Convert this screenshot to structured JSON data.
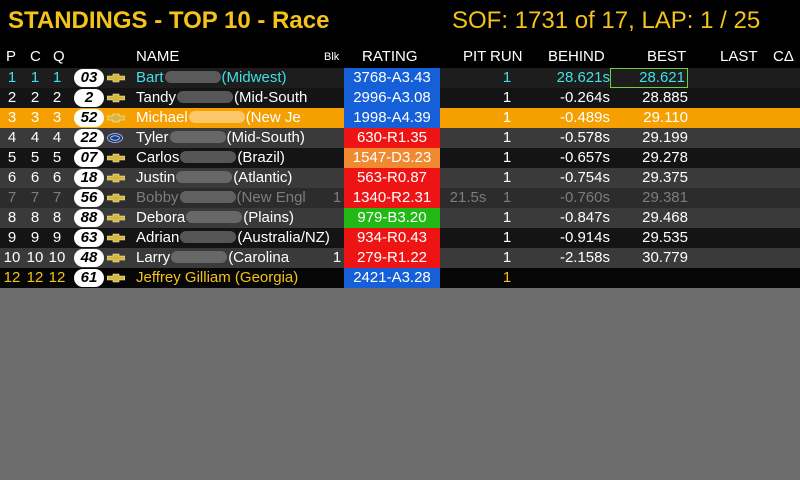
{
  "header": {
    "title": "STANDINGS - TOP 10 - Race",
    "session": "SOF: 1731 of 17, LAP: 1 / 25"
  },
  "columns": {
    "p": "P",
    "c": "C",
    "q": "Q",
    "name": "NAME",
    "blk": "Blk",
    "rating": "RATING",
    "pit": "PIT",
    "run": "RUN",
    "behind": "BEHIND",
    "best": "BEST",
    "last": "LAST",
    "delta": "CΔ"
  },
  "colors": {
    "accent": "#f3c21b",
    "self_text": "#3fe0e6",
    "highlight_row": "#f5a000",
    "rating_blue": "#1560d8",
    "rating_red": "#ee1414",
    "rating_orange": "#f08a30",
    "rating_green": "#22b815"
  },
  "rows": [
    {
      "p": "1",
      "c": "1",
      "q": "1",
      "num": "03",
      "make": "chevy-icon",
      "first": "Bart",
      "region": "(Midwest)",
      "rating": "3768-A3.43",
      "lic": "A",
      "pit": "",
      "run": "1",
      "behind": "28.621s",
      "best": "28.621",
      "style": "self"
    },
    {
      "p": "2",
      "c": "2",
      "q": "2",
      "num": "2",
      "make": "chevy-icon",
      "first": "Tandy",
      "region": "(Mid-South",
      "rating": "2996-A3.08",
      "lic": "A",
      "pit": "",
      "run": "1",
      "behind": "-0.264s",
      "best": "28.885",
      "style": "dark"
    },
    {
      "p": "3",
      "c": "3",
      "q": "3",
      "num": "52",
      "make": "chevy-icon",
      "first": "Michael",
      "region": "(New Je",
      "rating": "1998-A4.39",
      "lic": "A",
      "pit": "",
      "run": "1",
      "behind": "-0.489s",
      "best": "29.110",
      "style": "highlight"
    },
    {
      "p": "4",
      "c": "4",
      "q": "4",
      "num": "22",
      "make": "ford-icon",
      "first": "Tyler",
      "region": "(Mid-South)",
      "rating": "630-R1.35",
      "lic": "R",
      "pit": "",
      "run": "1",
      "behind": "-0.578s",
      "best": "29.199",
      "style": "light"
    },
    {
      "p": "5",
      "c": "5",
      "q": "5",
      "num": "07",
      "make": "chevy-icon",
      "first": "Carlos",
      "region": "(Brazil)",
      "rating": "1547-D3.23",
      "lic": "D",
      "pit": "",
      "run": "1",
      "behind": "-0.657s",
      "best": "29.278",
      "style": "dark"
    },
    {
      "p": "6",
      "c": "6",
      "q": "6",
      "num": "18",
      "make": "chevy-icon",
      "first": "Justin",
      "region": "(Atlantic)",
      "rating": "563-R0.87",
      "lic": "R",
      "pit": "",
      "run": "1",
      "behind": "-0.754s",
      "best": "29.375",
      "style": "light"
    },
    {
      "p": "7",
      "c": "7",
      "q": "7",
      "num": "56",
      "make": "chevy-icon",
      "first": "Bobby",
      "region": "(New Engl",
      "blk": "1",
      "rating": "1340-R2.31",
      "lic": "R",
      "pit": "21.5s",
      "run": "1",
      "behind": "-0.760s",
      "best": "29.381",
      "style": "pitted"
    },
    {
      "p": "8",
      "c": "8",
      "q": "8",
      "num": "88",
      "make": "chevy-icon",
      "first": "Debora",
      "region": "(Plains)",
      "rating": "979-B3.20",
      "lic": "B",
      "pit": "",
      "run": "1",
      "behind": "-0.847s",
      "best": "29.468",
      "style": "light"
    },
    {
      "p": "9",
      "c": "9",
      "q": "9",
      "num": "63",
      "make": "chevy-icon",
      "first": "Adrian",
      "region": "(Australia/NZ)",
      "rating": "934-R0.43",
      "lic": "R",
      "pit": "",
      "run": "1",
      "behind": "-0.914s",
      "best": "29.535",
      "style": "dark"
    },
    {
      "p": "10",
      "c": "10",
      "q": "10",
      "num": "48",
      "make": "chevy-icon",
      "first": "Larry",
      "region": "(Carolina",
      "blk": "1",
      "rating": "279-R1.22",
      "lic": "R",
      "pit": "",
      "run": "1",
      "behind": "-2.158s",
      "best": "30.779",
      "style": "light"
    },
    {
      "p": "12",
      "c": "12",
      "q": "12",
      "num": "61",
      "make": "chevy-icon",
      "first": "Jeffrey Gilliam (Georgia)",
      "region": "",
      "rating": "2421-A3.28",
      "lic": "A",
      "pit": "",
      "run": "1",
      "behind": "",
      "best": "",
      "style": "player",
      "clear": true
    }
  ]
}
